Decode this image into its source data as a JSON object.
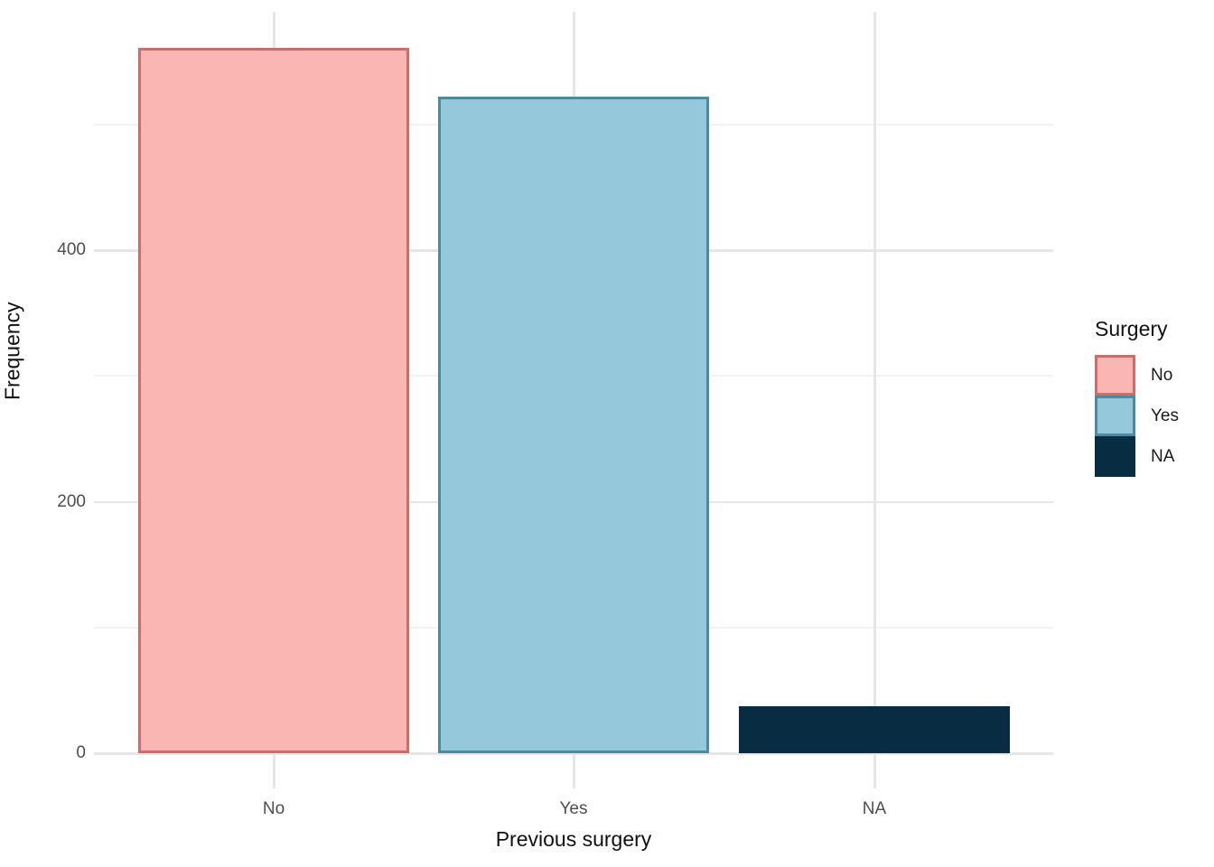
{
  "chart_data": {
    "type": "bar",
    "title": "",
    "xlabel": "Previous surgery",
    "ylabel": "Frequency",
    "categories": [
      "No",
      "Yes",
      "NA"
    ],
    "values": [
      561,
      522,
      37
    ],
    "bar_styles": [
      {
        "fill": "#F9B6B3",
        "border": "#CF6B68"
      },
      {
        "fill": "#95C8DB",
        "border": "#4A8BA1"
      },
      {
        "fill": "#082C41",
        "border": "#082C41"
      }
    ],
    "ylim": [
      0,
      570
    ],
    "yticks_major": [
      0,
      200,
      400
    ],
    "yticks_minor": [
      100,
      300,
      500
    ],
    "grid": "on",
    "legend_position": "right"
  },
  "legend": {
    "title": "Surgery",
    "entries": [
      {
        "label": "No",
        "fill": "#F9B6B3",
        "border": "#CF6B68"
      },
      {
        "label": "Yes",
        "fill": "#95C8DB",
        "border": "#4A8BA1"
      },
      {
        "label": "NA",
        "fill": "#082C41",
        "border": "#082C41"
      }
    ]
  },
  "colors": {
    "grid_major": "#E6E6E6",
    "grid_minor": "#F2F2F2",
    "tick_label": "#4D4D4D",
    "axis_title": "#111111",
    "legend_text": "#1A1A1A"
  }
}
